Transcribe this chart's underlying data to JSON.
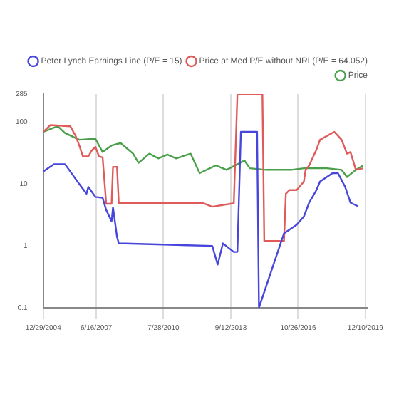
{
  "chart_data": {
    "type": "line",
    "log": "y",
    "grid": "x",
    "legend": "top",
    "marker": "none",
    "xlim": [
      "2004-12-29",
      "2020-01-10"
    ],
    "ylim": [
      0.1,
      285
    ],
    "xticks": [
      {
        "value": "2004-12-29",
        "label": "12/29/2004"
      },
      {
        "value": "2007-06-16",
        "label": "6/16/2007"
      },
      {
        "value": "2010-07-28",
        "label": "7/28/2010"
      },
      {
        "value": "2013-09-12",
        "label": "9/12/2013"
      },
      {
        "value": "2016-10-26",
        "label": "10/26/2016"
      },
      {
        "value": "2019-12-10",
        "label": "12/10/2019"
      }
    ],
    "yticks": [
      0.1,
      1,
      10,
      100,
      285
    ],
    "series": [
      {
        "name": "Peter Lynch Earnings Line (P/E = 15)",
        "color": "#4646dc",
        "x": [
          "2005-01",
          "2005-07",
          "2006-01",
          "2006-04",
          "2006-09",
          "2007-01",
          "2007-02",
          "2007-06",
          "2007-10",
          "2007-12",
          "2008-03-01",
          "2008-03-25",
          "2008-05",
          "2008-06",
          "2008-07",
          "2012-11",
          "2013-02",
          "2013-05",
          "2013-11",
          "2014-01",
          "2014-03",
          "2014-12",
          "2015-01",
          "2016-03",
          "2016-10",
          "2017-02",
          "2017-05",
          "2017-09",
          "2017-11",
          "2018-06",
          "2018-09",
          "2019-01",
          "2019-04",
          "2019-08"
        ],
        "values": [
          16,
          21,
          21,
          16,
          10,
          7,
          9,
          6.2,
          6,
          3.8,
          2.5,
          4.2,
          2.3,
          1.4,
          1.1,
          1,
          0.5,
          1.1,
          0.8,
          0.8,
          70,
          70,
          0.1,
          1.6,
          2.2,
          3,
          5,
          8,
          11,
          15,
          15,
          9,
          5,
          4.4
        ]
      },
      {
        "name": "Price at Med P/E without NRI (P/E = 64.052)",
        "color": "#e05a5a",
        "x": [
          "2005-01",
          "2005-05",
          "2006-04",
          "2006-07",
          "2006-09",
          "2006-11",
          "2007-02",
          "2007-04",
          "2007-06",
          "2007-08",
          "2007-10",
          "2007-12",
          "2008-03-01",
          "2008-03-25",
          "2008-06",
          "2008-07",
          "2012-06",
          "2012-11",
          "2013-11",
          "2014-01",
          "2015-03",
          "2015-04",
          "2016-03",
          "2016-04",
          "2016-06",
          "2016-10",
          "2017-02",
          "2017-03",
          "2017-05",
          "2017-09",
          "2017-11",
          "2018-07",
          "2018-11",
          "2019-02",
          "2019-04",
          "2019-07",
          "2019-11"
        ],
        "values": [
          70,
          90,
          86,
          60,
          42,
          28,
          28,
          35,
          40,
          28,
          27,
          4.8,
          4.8,
          19,
          19,
          4.9,
          4.9,
          4.3,
          4.9,
          285,
          285,
          1.2,
          1.2,
          7,
          8,
          8,
          11,
          17,
          20,
          36,
          52,
          70,
          52,
          31,
          33,
          17,
          18
        ]
      },
      {
        "name": "Price",
        "color": "#4aa04a",
        "x": [
          "2005-01",
          "2005-09",
          "2006-01",
          "2006-09",
          "2007-06",
          "2007-10",
          "2008-03",
          "2008-08",
          "2009-03",
          "2009-06",
          "2009-12",
          "2010-05",
          "2010-10",
          "2011-03",
          "2011-11",
          "2012-04",
          "2013-01",
          "2013-07",
          "2014-05",
          "2014-08",
          "2015-05",
          "2016-07",
          "2017-02",
          "2018-03",
          "2018-11",
          "2019-02",
          "2019-07",
          "2019-11"
        ],
        "values": [
          70,
          86,
          67,
          52,
          54,
          33,
          42,
          46,
          31,
          22,
          31,
          26,
          30,
          26,
          31,
          15,
          20,
          17,
          24,
          18,
          17,
          17,
          18,
          18,
          17,
          13,
          17,
          20
        ]
      }
    ]
  }
}
